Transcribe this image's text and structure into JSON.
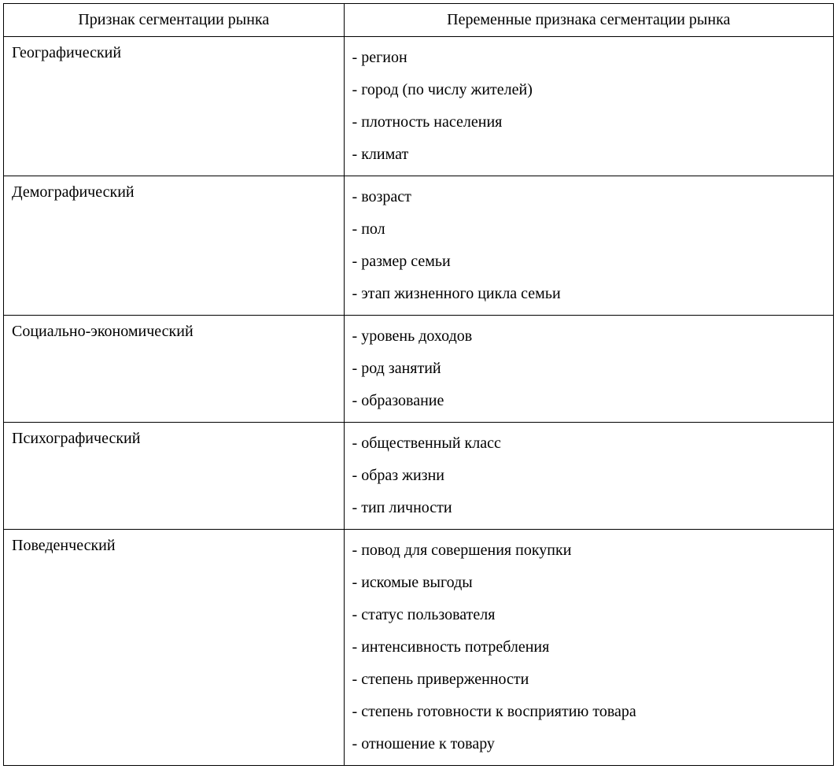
{
  "headers": {
    "col1": "Признак сегментации рынка",
    "col2": "Переменные признака сегментации рынка"
  },
  "rows": [
    {
      "category": "Географический",
      "items": [
        "- регион",
        "- город (по числу жителей)",
        "- плотность населения",
        "- климат"
      ]
    },
    {
      "category": "Демографический",
      "items": [
        "- возраст",
        "- пол",
        "- размер семьи",
        "- этап жизненного цикла семьи"
      ]
    },
    {
      "category": "Социально-экономический",
      "items": [
        "- уровень доходов",
        "- род занятий",
        "- образование"
      ]
    },
    {
      "category": "Психографический",
      "items": [
        "- общественный класс",
        "- образ жизни",
        "- тип личности"
      ]
    },
    {
      "category": "Поведенческий",
      "items": [
        "- повод для совершения покупки",
        "- искомые выгоды",
        "- статус пользователя",
        "- интенсивность потребления",
        "- степень приверженности",
        "- степень готовности к восприятию товара",
        "- отношение к товару"
      ]
    }
  ]
}
